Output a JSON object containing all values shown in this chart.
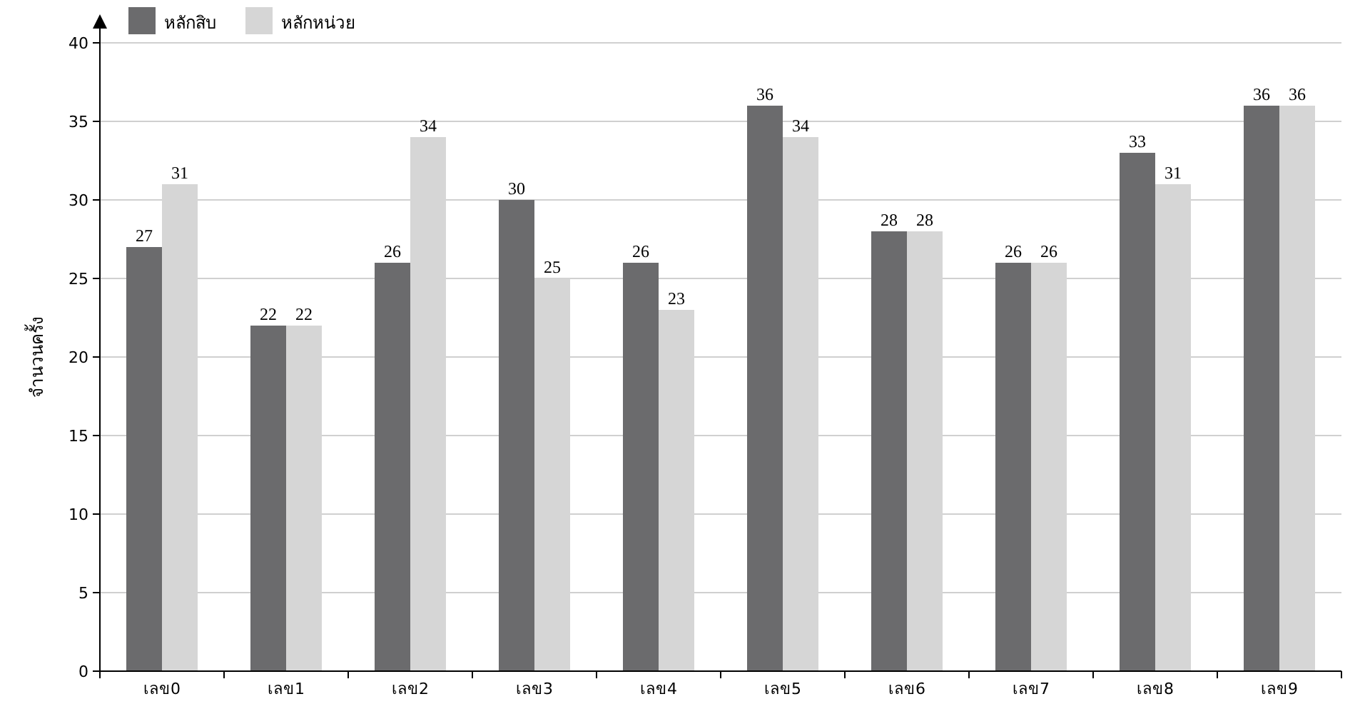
{
  "chart_data": {
    "type": "bar",
    "ylabel": "จำนวนครั้ง",
    "categories": [
      "เลข0",
      "เลข1",
      "เลข2",
      "เลข3",
      "เลข4",
      "เลข5",
      "เลข6",
      "เลข7",
      "เลข8",
      "เลข9"
    ],
    "series": [
      {
        "name": "หลักสิบ",
        "color": "#6b6b6d",
        "values": [
          27,
          22,
          26,
          30,
          26,
          36,
          28,
          26,
          33,
          36
        ]
      },
      {
        "name": "หลักหน่วย",
        "color": "#d6d6d6",
        "values": [
          31,
          22,
          34,
          25,
          23,
          34,
          28,
          26,
          31,
          36
        ]
      }
    ],
    "ylim": [
      0,
      40
    ],
    "yticks": [
      0,
      5,
      10,
      15,
      20,
      25,
      30,
      35,
      40
    ],
    "grid": "y",
    "legend": "top left",
    "data_labels": true
  }
}
